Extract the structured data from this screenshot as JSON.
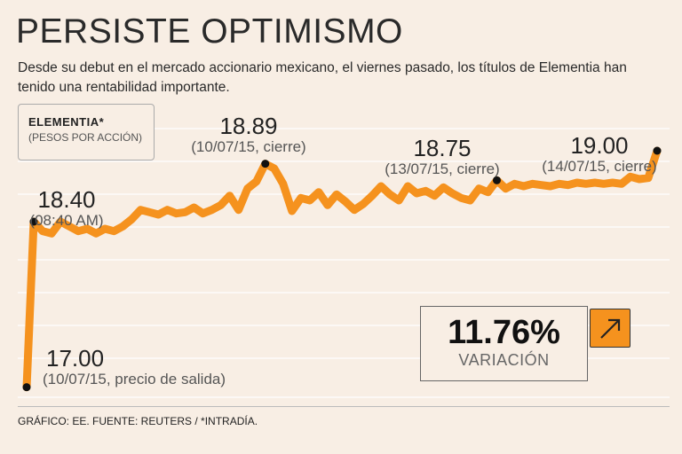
{
  "title": "PERSISTE OPTIMISMO",
  "subtitle": "Desde su debut en el mercado accionario mexicano, el viernes pasado, los títulos de Elementia han tenido una rentabilidad importante.",
  "legend": {
    "name": "ELEMENTIA*",
    "unit": "(PESOS POR ACCIÓN)"
  },
  "annotations": [
    {
      "value": "17.00",
      "desc": "(10/07/15, precio de salida)"
    },
    {
      "value": "18.40",
      "desc": "(08:40 AM)"
    },
    {
      "value": "18.89",
      "desc": "(10/07/15, cierre)"
    },
    {
      "value": "18.75",
      "desc": "(13/07/15, cierre)"
    },
    {
      "value": "19.00",
      "desc": "(14/07/15, cierre)"
    }
  ],
  "variation": {
    "percent": "11.76%",
    "label": "VARIACIÓN",
    "icon": "arrow-up-right-icon"
  },
  "footer": "GRÁFICO: EE. FUENTE: REUTERS / *INTRADÍA.",
  "colors": {
    "line": "#f5921e",
    "background": "#f8eee4",
    "grid": "#ffffff"
  },
  "chart_data": {
    "type": "line",
    "title": "PERSISTE OPTIMISMO",
    "ylabel": "PESOS POR ACCIÓN",
    "ylim": [
      16.9,
      19.3
    ],
    "grid": true,
    "series": [
      {
        "name": "ELEMENTIA",
        "values": [
          17.0,
          18.4,
          18.32,
          18.3,
          18.4,
          18.36,
          18.32,
          18.34,
          18.3,
          18.34,
          18.32,
          18.36,
          18.42,
          18.5,
          18.48,
          18.46,
          18.5,
          18.47,
          18.48,
          18.52,
          18.47,
          18.5,
          18.54,
          18.62,
          18.5,
          18.68,
          18.74,
          18.89,
          18.85,
          18.72,
          18.49,
          18.6,
          18.58,
          18.65,
          18.54,
          18.63,
          18.57,
          18.5,
          18.55,
          18.62,
          18.7,
          18.63,
          18.58,
          18.7,
          18.64,
          18.66,
          18.62,
          18.69,
          18.64,
          18.6,
          18.58,
          18.68,
          18.65,
          18.75,
          18.68,
          18.72,
          18.7,
          18.72,
          18.71,
          18.7,
          18.72,
          18.71,
          18.73,
          18.72,
          18.73,
          18.72,
          18.73,
          18.72,
          18.78,
          18.76,
          18.77,
          19.0
        ]
      }
    ],
    "labeled_points": [
      {
        "index": 0,
        "value": 17.0
      },
      {
        "index": 1,
        "value": 18.4
      },
      {
        "index": 27,
        "value": 18.89
      },
      {
        "index": 53,
        "value": 18.75
      },
      {
        "index": 71,
        "value": 19.0
      }
    ]
  }
}
